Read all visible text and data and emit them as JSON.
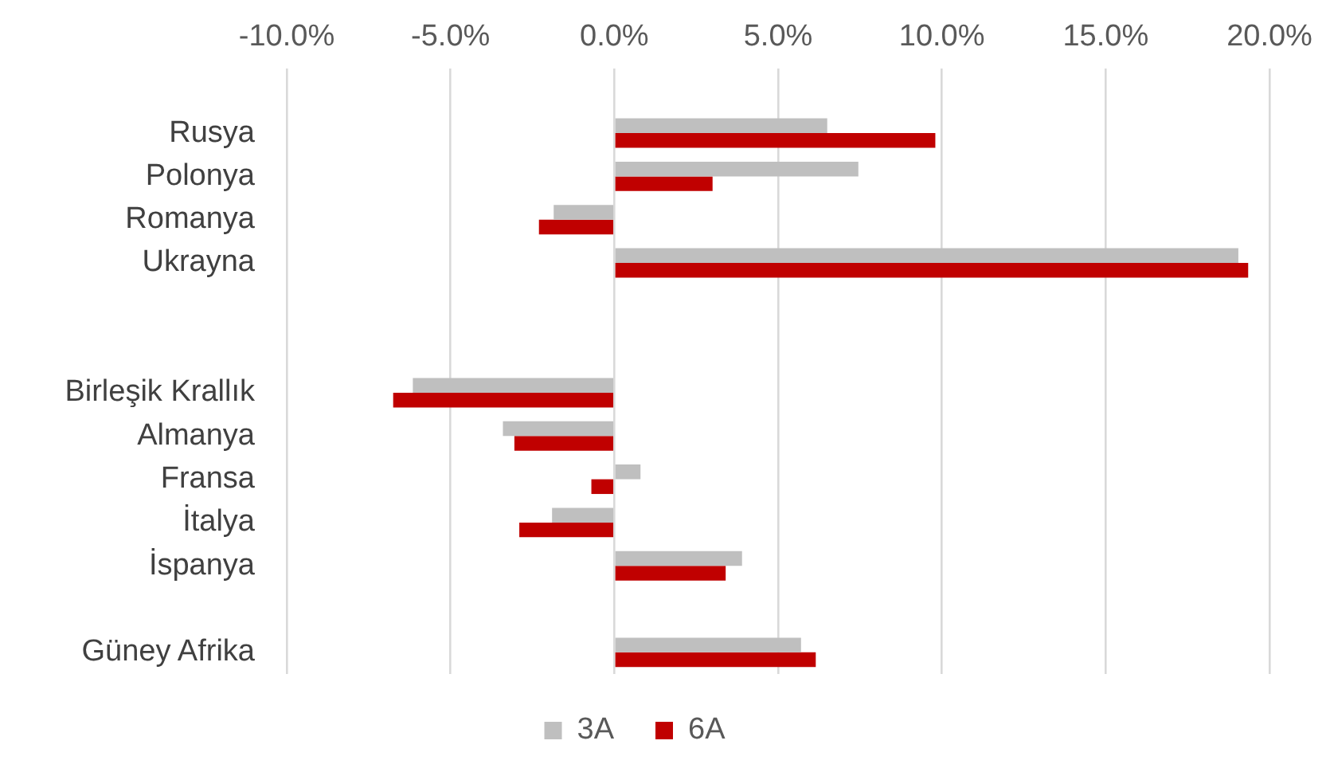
{
  "chart_data": {
    "type": "bar",
    "orientation": "horizontal",
    "categories": [
      null,
      "Rusya",
      "Polonya",
      "Romanya",
      "Ukrayna",
      null,
      null,
      "Birleşik Krallık",
      "Almanya",
      "Fransa",
      "İtalya",
      "İspanya",
      null,
      "Güney Afrika"
    ],
    "series": [
      {
        "name": "3A",
        "color": "#bfbfbf",
        "values": [
          null,
          6.5,
          7.45,
          -1.85,
          19.05,
          null,
          null,
          -6.15,
          -3.4,
          0.8,
          -1.9,
          3.9,
          null,
          5.7
        ]
      },
      {
        "name": "6A",
        "color": "#c00000",
        "values": [
          null,
          9.8,
          3.0,
          -2.3,
          19.35,
          null,
          null,
          -6.75,
          -3.05,
          -0.7,
          -2.9,
          3.4,
          null,
          6.15
        ]
      }
    ],
    "xlim": [
      -10,
      20
    ],
    "xticks": [
      {
        "value": -10,
        "label": "-10.0%"
      },
      {
        "value": -5,
        "label": "-5.0%"
      },
      {
        "value": 0,
        "label": "0.0%"
      },
      {
        "value": 5,
        "label": "5.0%"
      },
      {
        "value": 10,
        "label": "10.0%"
      },
      {
        "value": 15,
        "label": "15.0%"
      },
      {
        "value": 20,
        "label": "20.0%"
      }
    ],
    "grid": "x",
    "legend": "bottom"
  }
}
